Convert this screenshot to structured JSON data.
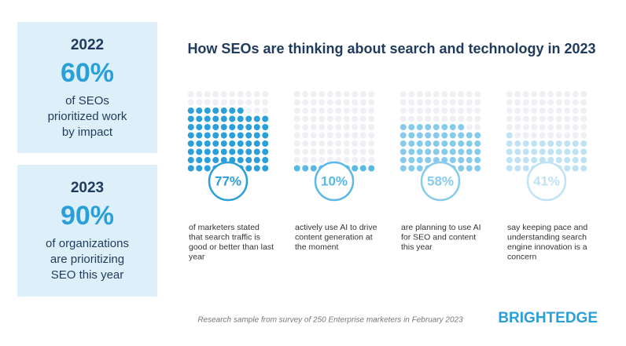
{
  "side_panels": [
    {
      "year": "2022",
      "stat": "60%",
      "lines": [
        "of SEOs",
        "prioritized work",
        "by impact"
      ]
    },
    {
      "year": "2023",
      "stat": "90%",
      "lines": [
        "of organizations",
        "are prioritizing",
        "SEO this year"
      ]
    }
  ],
  "title": "How SEOs are thinking about search and technology in 2023",
  "stats": [
    {
      "value": 77,
      "value_label": "77%",
      "color": "#2b9fd8",
      "lines": [
        "of marketers stated",
        "that search traffic is",
        "good or better than last",
        "year"
      ]
    },
    {
      "value": 10,
      "value_label": "10%",
      "color": "#5ab8e4",
      "lines": [
        "actively use AI to drive",
        "content generation at",
        "the moment"
      ]
    },
    {
      "value": 58,
      "value_label": "58%",
      "color": "#86cbec",
      "lines": [
        "are planning to use AI",
        "for SEO and content",
        "this year"
      ]
    },
    {
      "value": 41,
      "value_label": "41%",
      "color": "#bfe3f5",
      "lines": [
        "say keeping pace and",
        "understanding search",
        "engine innovation is a",
        "concern"
      ]
    }
  ],
  "footnote": "Research sample from survey of 250 Enterprise marketers in February 2023",
  "logo": "BRIGHTEDGE"
}
